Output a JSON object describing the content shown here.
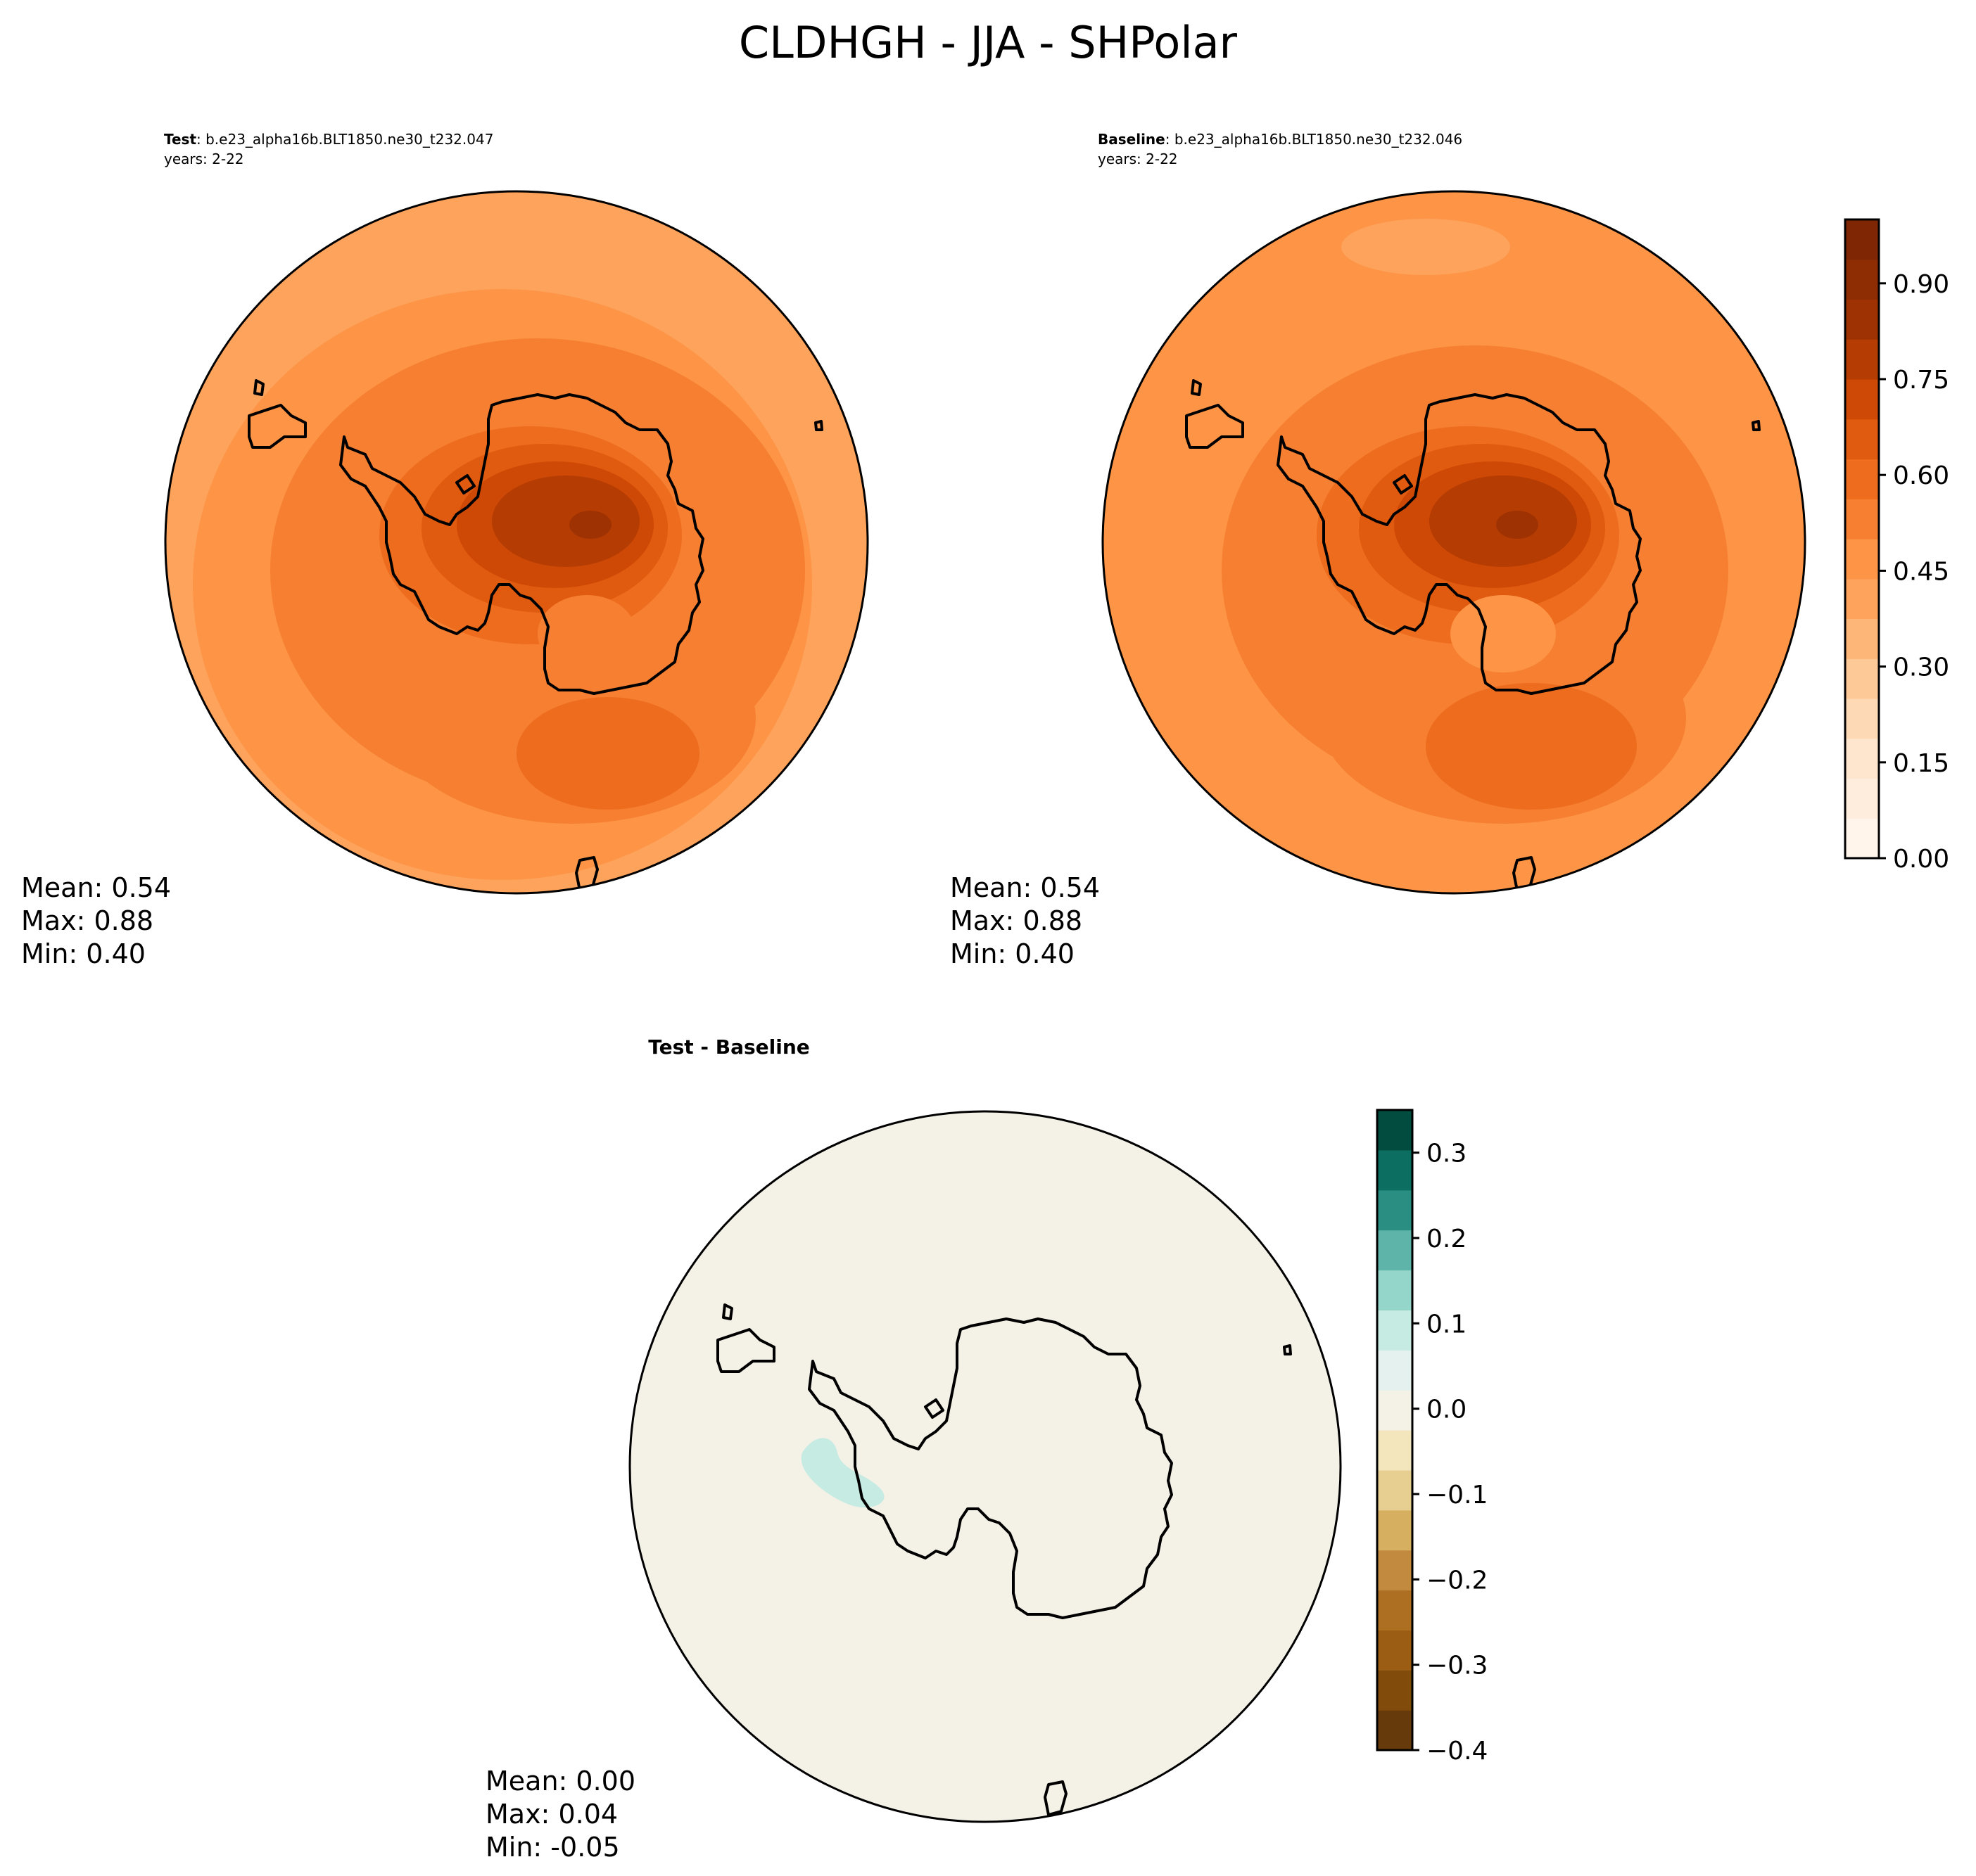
{
  "figure": {
    "title": "CLDHGH - JJA - SHPolar"
  },
  "chart_data": [
    {
      "type": "heatmap",
      "panel": "test",
      "label_bold": "Test",
      "label_rest": ": b.e23_alpha16b.BLT1850.ne30_t232.047",
      "years": "years: 2-22",
      "stats": {
        "mean": "Mean:  0.54",
        "max": "Max:  0.88",
        "min": "Min:  0.40"
      },
      "field_levels": [
        0.4,
        0.45,
        0.5,
        0.55,
        0.6,
        0.65,
        0.7,
        0.75,
        0.8,
        0.85
      ],
      "background_value": 0.4
    },
    {
      "type": "heatmap",
      "panel": "baseline",
      "label_bold": "Baseline",
      "label_rest": ": b.e23_alpha16b.BLT1850.ne30_t232.046",
      "years": "years: 2-22",
      "stats": {
        "mean": "Mean:  0.54",
        "max": "Max:  0.88",
        "min": "Min:  0.40"
      },
      "field_levels": [
        0.4,
        0.45,
        0.5,
        0.55,
        0.6,
        0.65,
        0.7,
        0.75,
        0.8,
        0.85
      ],
      "background_value": 0.45,
      "colorbar": {
        "range": [
          0.0,
          1.0
        ],
        "ticks": [
          0.0,
          0.15,
          0.3,
          0.45,
          0.6,
          0.75,
          0.9
        ],
        "tick_labels": [
          "0.00",
          "0.15",
          "0.30",
          "0.45",
          "0.60",
          "0.75",
          "0.90"
        ],
        "colors": [
          "#fff5eb",
          "#feeddc",
          "#fee6ce",
          "#fdd9b5",
          "#fdc997",
          "#fdb678",
          "#fda35c",
          "#fd9446",
          "#f67f31",
          "#ee6c1d",
          "#e05a0f",
          "#cf4906",
          "#b53c03",
          "#9f3203",
          "#8e2c04",
          "#7f2704"
        ]
      }
    },
    {
      "type": "heatmap",
      "panel": "difference",
      "label_bold": "Test - Baseline",
      "stats": {
        "mean": "Mean:  0.00",
        "max": "Max:  0.04",
        "min": "Min: -0.05"
      },
      "colorbar": {
        "range": [
          -0.4,
          0.35
        ],
        "ticks": [
          -0.4,
          -0.3,
          -0.2,
          -0.1,
          0.0,
          0.1,
          0.2,
          0.3
        ],
        "tick_labels": [
          "−0.4",
          "−0.3",
          "−0.2",
          "−0.1",
          "0.0",
          "0.1",
          "0.2",
          "0.3"
        ],
        "colors": [
          "#673a0b",
          "#814b0b",
          "#9a5d13",
          "#ad6f21",
          "#c28a3f",
          "#d6b060",
          "#e6cf90",
          "#f3e6bd",
          "#f4f1e6",
          "#e4f1ee",
          "#c5ebe3",
          "#94d6ca",
          "#5eb4a8",
          "#2a8f82",
          "#0c6d61",
          "#014c3f"
        ],
        "fill_levels": {
          "negative_near_zero": -0.02,
          "positive_near_zero": 0.02,
          "positive_small": 0.07
        }
      }
    }
  ]
}
